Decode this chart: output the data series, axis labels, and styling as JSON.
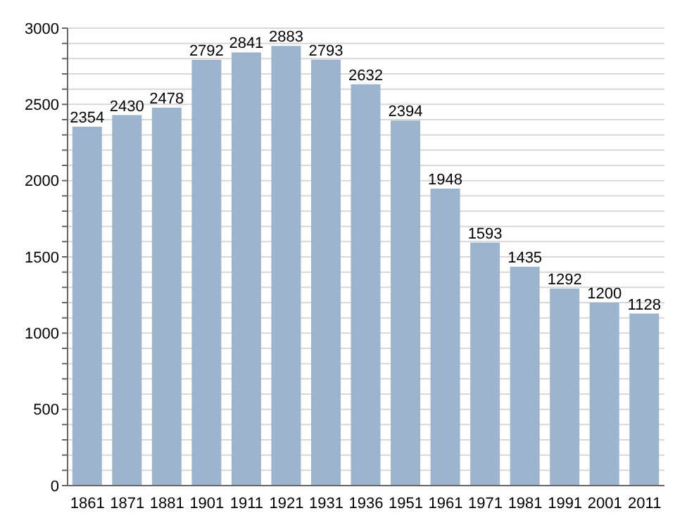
{
  "chart_data": {
    "type": "bar",
    "categories": [
      "1861",
      "1871",
      "1881",
      "1901",
      "1911",
      "1921",
      "1931",
      "1936",
      "1951",
      "1961",
      "1971",
      "1981",
      "1991",
      "2001",
      "2011"
    ],
    "values": [
      2354,
      2430,
      2478,
      2792,
      2841,
      2883,
      2793,
      2632,
      2394,
      1948,
      1593,
      1435,
      1292,
      1200,
      1128
    ],
    "color": "#9db4cf",
    "data_labels": true,
    "grid": "y",
    "ylim": [
      0,
      3000
    ],
    "yticks": [
      0,
      {
        "value": 100,
        "label": null
      },
      {
        "value": 200,
        "label": null
      },
      {
        "value": 300,
        "label": null
      },
      {
        "value": 400,
        "label": null
      },
      500,
      {
        "value": 600,
        "label": null
      },
      {
        "value": 700,
        "label": null
      },
      {
        "value": 800,
        "label": null
      },
      {
        "value": 900,
        "label": null
      },
      1000,
      {
        "value": 1100,
        "label": null
      },
      {
        "value": 1200,
        "label": null
      },
      {
        "value": 1300,
        "label": null
      },
      {
        "value": 1400,
        "label": null
      },
      1500,
      {
        "value": 1600,
        "label": null
      },
      {
        "value": 1700,
        "label": null
      },
      {
        "value": 1800,
        "label": null
      },
      {
        "value": 1900,
        "label": null
      },
      2000,
      {
        "value": 2100,
        "label": null
      },
      {
        "value": 2200,
        "label": null
      },
      {
        "value": 2300,
        "label": null
      },
      {
        "value": 2400,
        "label": null
      },
      2500,
      {
        "value": 2600,
        "label": null
      },
      {
        "value": 2700,
        "label": null
      },
      {
        "value": 2800,
        "label": null
      },
      {
        "value": 2900,
        "label": null
      },
      3000
    ]
  }
}
